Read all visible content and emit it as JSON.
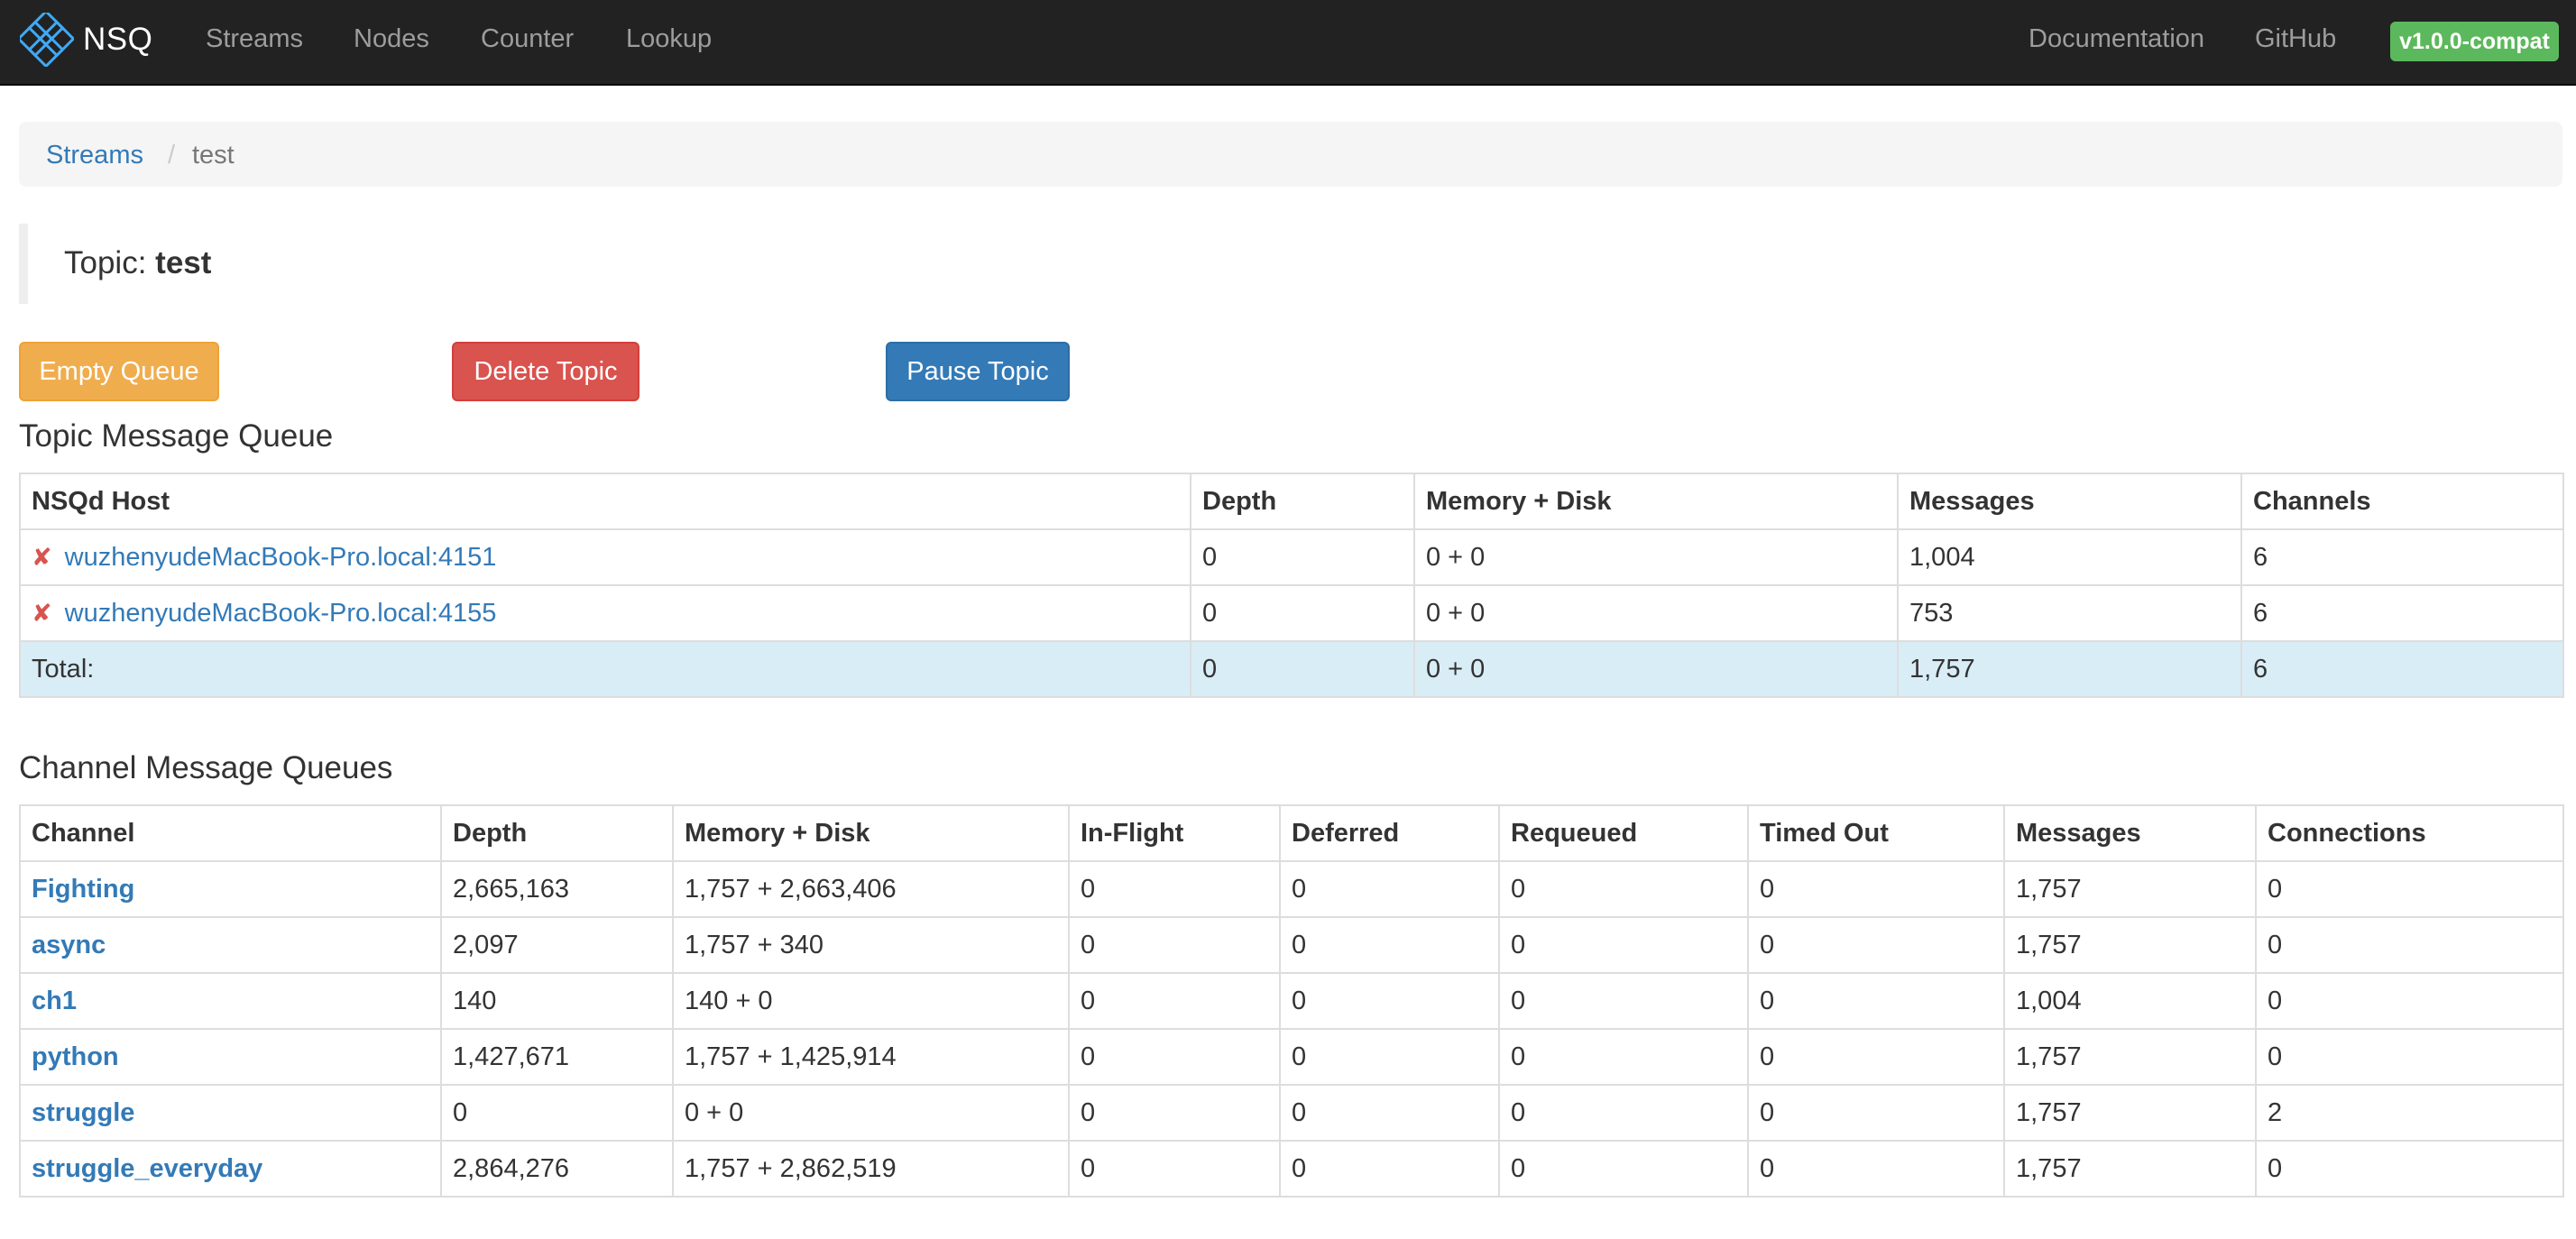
{
  "navbar": {
    "brand": "NSQ",
    "links": [
      "Streams",
      "Nodes",
      "Counter",
      "Lookup"
    ],
    "right_links": [
      "Documentation",
      "GitHub"
    ],
    "version": "v1.0.0-compat"
  },
  "breadcrumb": {
    "parent": "Streams",
    "separator": "/",
    "current": "test"
  },
  "topic": {
    "label": "Topic:",
    "name": "test"
  },
  "actions": {
    "empty_queue": "Empty Queue",
    "delete_topic": "Delete Topic",
    "pause_topic": "Pause Topic"
  },
  "topic_queue": {
    "title": "Topic Message Queue",
    "headers": [
      "NSQd Host",
      "Depth",
      "Memory + Disk",
      "Messages",
      "Channels"
    ],
    "rows": [
      {
        "status": "✘",
        "host": "wuzhenyudeMacBook-Pro.local:4151",
        "depth": "0",
        "mem_disk": "0 + 0",
        "messages": "1,004",
        "channels": "6"
      },
      {
        "status": "✘",
        "host": "wuzhenyudeMacBook-Pro.local:4155",
        "depth": "0",
        "mem_disk": "0 + 0",
        "messages": "753",
        "channels": "6"
      }
    ],
    "total": {
      "label": "Total:",
      "depth": "0",
      "mem_disk": "0 + 0",
      "messages": "1,757",
      "channels": "6"
    }
  },
  "channel_queues": {
    "title": "Channel Message Queues",
    "headers": [
      "Channel",
      "Depth",
      "Memory + Disk",
      "In-Flight",
      "Deferred",
      "Requeued",
      "Timed Out",
      "Messages",
      "Connections"
    ],
    "rows": [
      [
        "Fighting",
        "2,665,163",
        "1,757 + 2,663,406",
        "0",
        "0",
        "0",
        "0",
        "1,757",
        "0"
      ],
      [
        "async",
        "2,097",
        "1,757 + 340",
        "0",
        "0",
        "0",
        "0",
        "1,757",
        "0"
      ],
      [
        "ch1",
        "140",
        "140 + 0",
        "0",
        "0",
        "0",
        "0",
        "1,004",
        "0"
      ],
      [
        "python",
        "1,427,671",
        "1,757 + 1,425,914",
        "0",
        "0",
        "0",
        "0",
        "1,757",
        "0"
      ],
      [
        "struggle",
        "0",
        "0 + 0",
        "0",
        "0",
        "0",
        "0",
        "1,757",
        "2"
      ],
      [
        "struggle_everyday",
        "2,864,276",
        "1,757 + 2,862,519",
        "0",
        "0",
        "0",
        "0",
        "1,757",
        "0"
      ]
    ]
  }
}
